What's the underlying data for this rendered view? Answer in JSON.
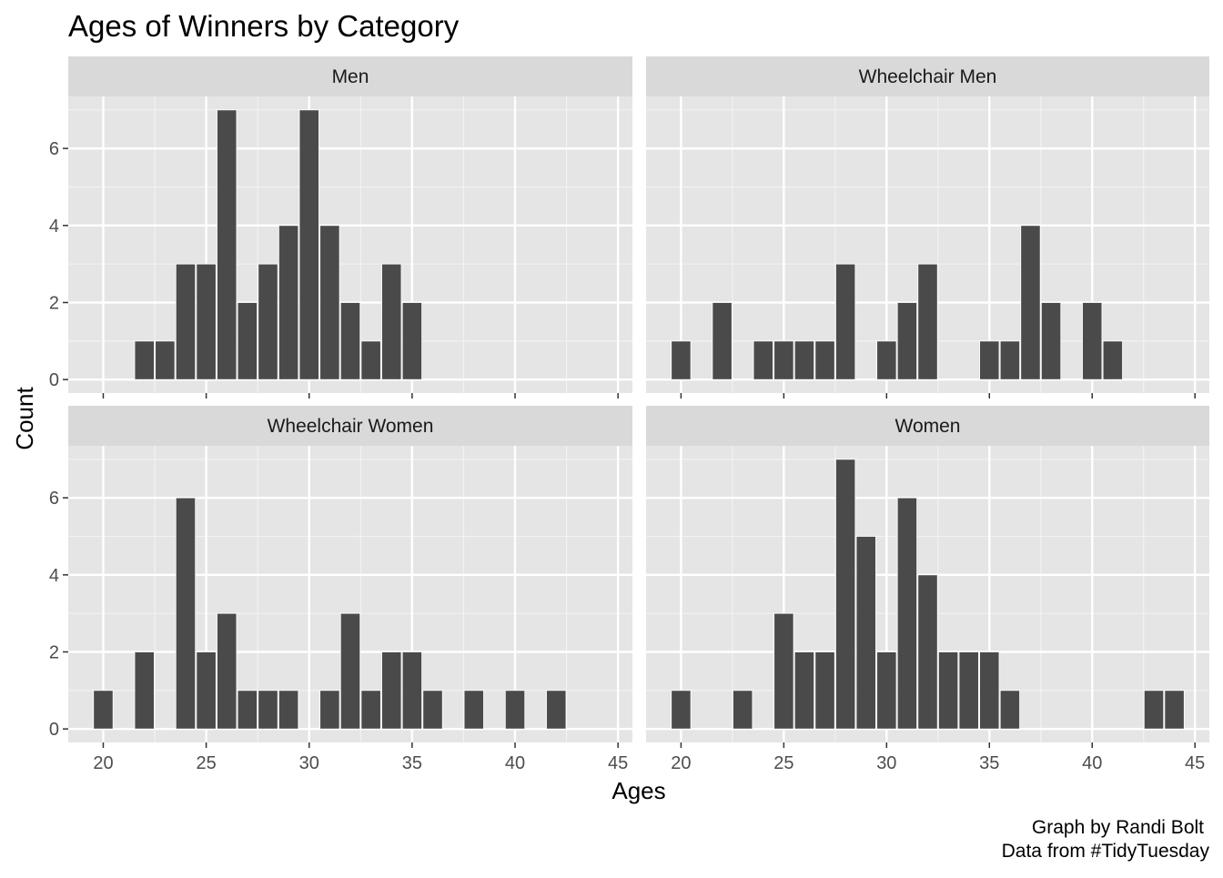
{
  "chart_data": {
    "type": "bar",
    "title": "Ages of Winners by Category",
    "xlabel": "Ages",
    "ylabel": "Count",
    "caption_line1": "Graph by Randi Bolt",
    "caption_line2": "Data from #TidyTuesday",
    "xlim": [
      18.3,
      45.7
    ],
    "ylim": [
      -0.35,
      7.35
    ],
    "x_ticks": [
      20,
      25,
      30,
      35,
      40,
      45
    ],
    "y_ticks": [
      0,
      2,
      4,
      6
    ],
    "bin_width": 1,
    "colors": {
      "bar": "#4a4a4a",
      "panel": "#e5e5e5",
      "strip": "#d9d9d9",
      "grid": "#ffffff"
    },
    "panels": [
      {
        "name": "Men",
        "x": [
          22,
          23,
          24,
          25,
          26,
          27,
          28,
          29,
          30,
          31,
          32,
          33,
          34,
          35
        ],
        "values": [
          1,
          1,
          3,
          3,
          7,
          2,
          3,
          4,
          7,
          4,
          2,
          1,
          3,
          2
        ]
      },
      {
        "name": "Wheelchair Men",
        "x": [
          20,
          22,
          24,
          25,
          26,
          27,
          28,
          30,
          31,
          32,
          35,
          36,
          37,
          38,
          40,
          41
        ],
        "values": [
          1,
          2,
          1,
          1,
          1,
          1,
          3,
          1,
          2,
          3,
          1,
          1,
          4,
          2,
          2,
          1
        ]
      },
      {
        "name": "Wheelchair Women",
        "x": [
          20,
          22,
          24,
          25,
          26,
          27,
          28,
          29,
          31,
          32,
          33,
          34,
          35,
          36,
          38,
          40,
          42
        ],
        "values": [
          1,
          2,
          6,
          2,
          3,
          1,
          1,
          1,
          1,
          3,
          1,
          2,
          2,
          1,
          1,
          1,
          1
        ]
      },
      {
        "name": "Women",
        "x": [
          20,
          23,
          25,
          26,
          27,
          28,
          29,
          30,
          31,
          32,
          33,
          34,
          35,
          36,
          43,
          44
        ],
        "values": [
          1,
          1,
          3,
          2,
          2,
          7,
          5,
          2,
          6,
          4,
          2,
          2,
          2,
          1,
          1,
          1
        ]
      }
    ]
  }
}
